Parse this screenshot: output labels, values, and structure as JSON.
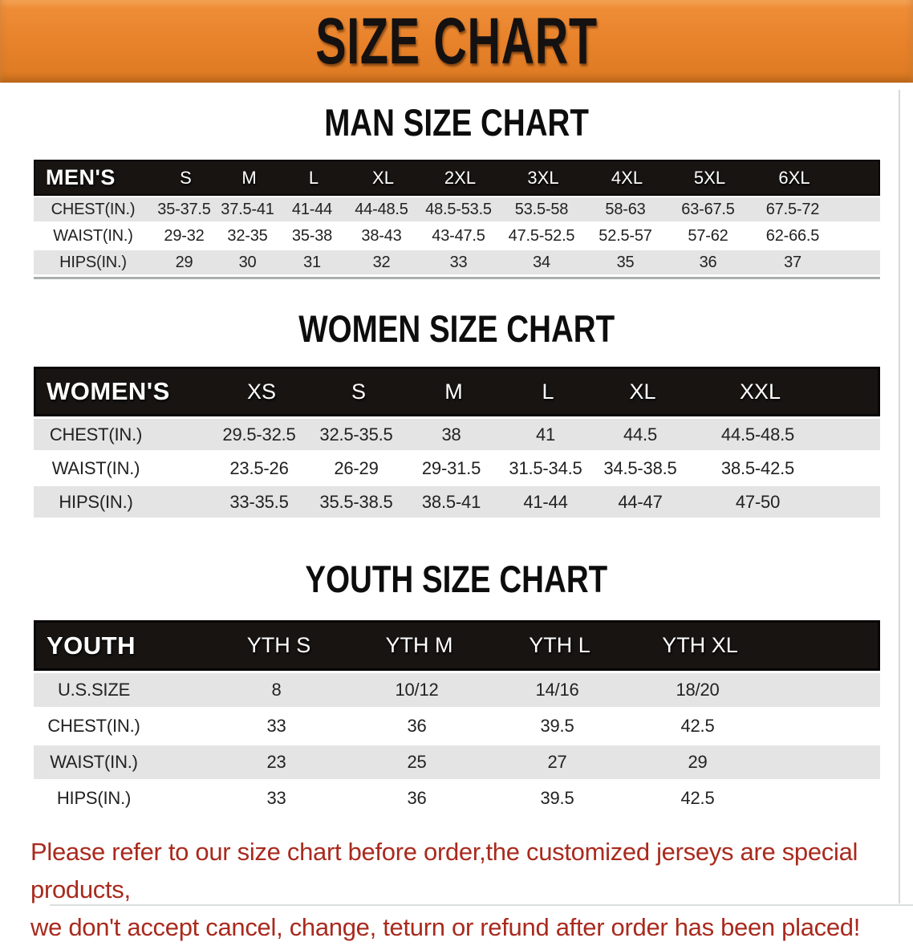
{
  "banner": {
    "title": "SIZE CHART",
    "bg_color": "#e8822b",
    "text_color": "#141110"
  },
  "colors": {
    "header_bar": "#171412",
    "row_gray": "#e4e4e4",
    "footer_red": "#a92a1e"
  },
  "sections": {
    "men": {
      "title": "MAN SIZE CHART",
      "header": {
        "label": "MEN'S",
        "sizes": [
          "S",
          "M",
          "L",
          "XL",
          "2XL",
          "3XL",
          "4XL",
          "5XL",
          "6XL"
        ]
      },
      "rows": [
        {
          "label": "CHEST(IN.)",
          "values": [
            "35-37.5",
            "37.5-41",
            "41-44",
            "44-48.5",
            "48.5-53.5",
            "53.5-58",
            "58-63",
            "63-67.5",
            "67.5-72"
          ]
        },
        {
          "label": "WAIST(IN.)",
          "values": [
            "29-32",
            "32-35",
            "35-38",
            "38-43",
            "43-47.5",
            "47.5-52.5",
            "52.5-57",
            "57-62",
            "62-66.5"
          ]
        },
        {
          "label": "HIPS(IN.)",
          "values": [
            "29",
            "30",
            "31",
            "32",
            "33",
            "34",
            "35",
            "36",
            "37"
          ]
        }
      ]
    },
    "women": {
      "title": "WOMEN SIZE CHART",
      "header": {
        "label": "WOMEN'S",
        "sizes": [
          "XS",
          "S",
          "M",
          "L",
          "XL",
          "XXL"
        ]
      },
      "rows": [
        {
          "label": "CHEST(IN.)",
          "values": [
            "29.5-32.5",
            "32.5-35.5",
            "38",
            "41",
            "44.5",
            "44.5-48.5"
          ]
        },
        {
          "label": "WAIST(IN.)",
          "values": [
            "23.5-26",
            "26-29",
            "29-31.5",
            "31.5-34.5",
            "34.5-38.5",
            "38.5-42.5"
          ]
        },
        {
          "label": "HIPS(IN.)",
          "values": [
            "33-35.5",
            "35.5-38.5",
            "38.5-41",
            "41-44",
            "44-47",
            "47-50"
          ]
        }
      ]
    },
    "youth": {
      "title": "YOUTH SIZE CHART",
      "header": {
        "label": "YOUTH",
        "sizes": [
          "YTH S",
          "YTH M",
          "YTH L",
          "YTH XL"
        ]
      },
      "rows": [
        {
          "label": "U.S.SIZE",
          "values": [
            "8",
            "10/12",
            "14/16",
            "18/20"
          ]
        },
        {
          "label": "CHEST(IN.)",
          "values": [
            "33",
            "36",
            "39.5",
            "42.5"
          ]
        },
        {
          "label": "WAIST(IN.)",
          "values": [
            "23",
            "25",
            "27",
            "29"
          ]
        },
        {
          "label": "HIPS(IN.)",
          "values": [
            "33",
            "36",
            "39.5",
            "42.5"
          ]
        }
      ]
    }
  },
  "footer": {
    "line1": "Please refer to our size chart before order,the customized jerseys are special products,",
    "line2": "we don't accept cancel, change, teturn or refund after order has been placed!"
  }
}
